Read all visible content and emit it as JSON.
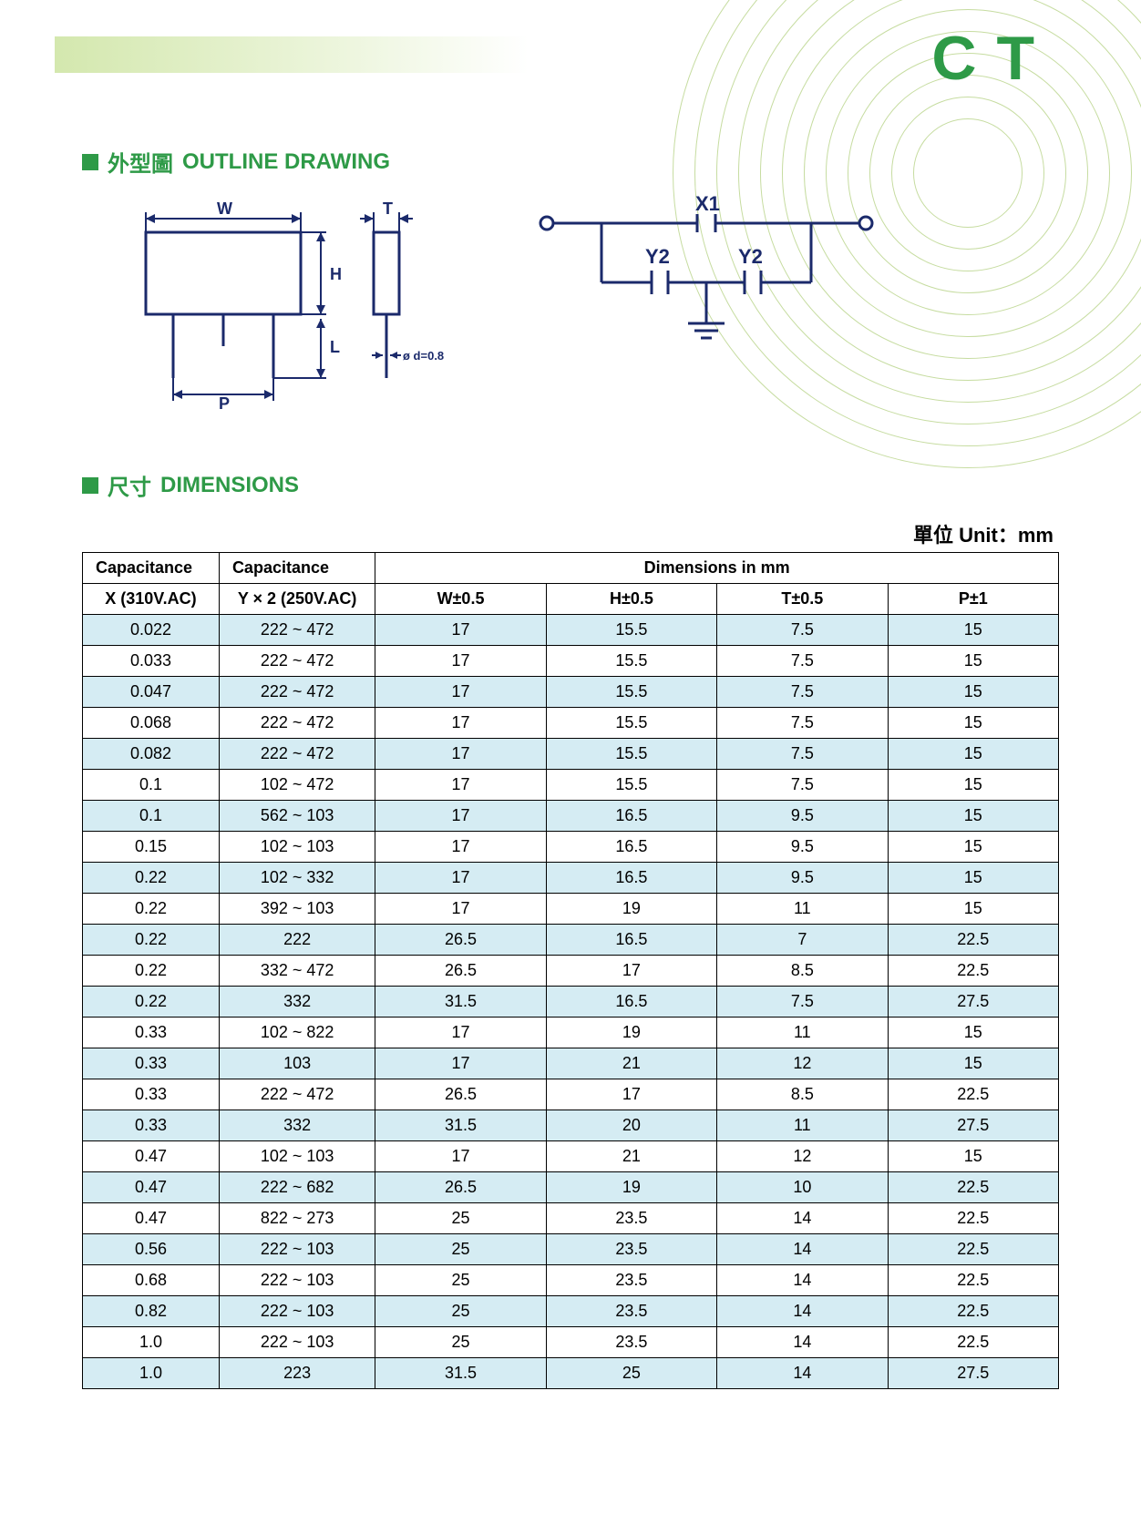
{
  "brand": "CT",
  "sections": {
    "outline": {
      "zh": "外型圖",
      "en": "OUTLINE DRAWING"
    },
    "dimensions": {
      "zh": "尺寸",
      "en": "DIMENSIONS"
    }
  },
  "unit_label": "單位 Unit：mm",
  "diagram1": {
    "W": "W",
    "H": "H",
    "L": "L",
    "P": "P",
    "T": "T",
    "d": "ø d=0.8"
  },
  "diagram2": {
    "X1": "X1",
    "Y2a": "Y2",
    "Y2b": "Y2"
  },
  "table": {
    "header1": [
      "Capacitance",
      "Capacitance",
      "Dimensions in mm"
    ],
    "header2": [
      "X (310V.AC)",
      "Y × 2 (250V.AC)",
      "W±0.5",
      "H±0.5",
      "T±0.5",
      "P±1"
    ],
    "col_widths_pct": [
      14,
      16,
      17.5,
      17.5,
      17.5,
      17.5
    ],
    "band_color": "#d5ecf3",
    "rows": [
      [
        "0.022",
        "222 ~ 472",
        "17",
        "15.5",
        "7.5",
        "15"
      ],
      [
        "0.033",
        "222 ~ 472",
        "17",
        "15.5",
        "7.5",
        "15"
      ],
      [
        "0.047",
        "222 ~ 472",
        "17",
        "15.5",
        "7.5",
        "15"
      ],
      [
        "0.068",
        "222 ~ 472",
        "17",
        "15.5",
        "7.5",
        "15"
      ],
      [
        "0.082",
        "222 ~ 472",
        "17",
        "15.5",
        "7.5",
        "15"
      ],
      [
        "0.1",
        "102 ~ 472",
        "17",
        "15.5",
        "7.5",
        "15"
      ],
      [
        "0.1",
        "562 ~ 103",
        "17",
        "16.5",
        "9.5",
        "15"
      ],
      [
        "0.15",
        "102 ~ 103",
        "17",
        "16.5",
        "9.5",
        "15"
      ],
      [
        "0.22",
        "102 ~ 332",
        "17",
        "16.5",
        "9.5",
        "15"
      ],
      [
        "0.22",
        "392 ~ 103",
        "17",
        "19",
        "11",
        "15"
      ],
      [
        "0.22",
        "222",
        "26.5",
        "16.5",
        "7",
        "22.5"
      ],
      [
        "0.22",
        "332 ~ 472",
        "26.5",
        "17",
        "8.5",
        "22.5"
      ],
      [
        "0.22",
        "332",
        "31.5",
        "16.5",
        "7.5",
        "27.5"
      ],
      [
        "0.33",
        "102 ~ 822",
        "17",
        "19",
        "11",
        "15"
      ],
      [
        "0.33",
        "103",
        "17",
        "21",
        "12",
        "15"
      ],
      [
        "0.33",
        "222 ~ 472",
        "26.5",
        "17",
        "8.5",
        "22.5"
      ],
      [
        "0.33",
        "332",
        "31.5",
        "20",
        "11",
        "27.5"
      ],
      [
        "0.47",
        "102 ~ 103",
        "17",
        "21",
        "12",
        "15"
      ],
      [
        "0.47",
        "222 ~ 682",
        "26.5",
        "19",
        "10",
        "22.5"
      ],
      [
        "0.47",
        "822 ~ 273",
        "25",
        "23.5",
        "14",
        "22.5"
      ],
      [
        "0.56",
        "222 ~ 103",
        "25",
        "23.5",
        "14",
        "22.5"
      ],
      [
        "0.68",
        "222 ~ 103",
        "25",
        "23.5",
        "14",
        "22.5"
      ],
      [
        "0.82",
        "222 ~ 103",
        "25",
        "23.5",
        "14",
        "22.5"
      ],
      [
        "1.0",
        "222 ~ 103",
        "25",
        "23.5",
        "14",
        "22.5"
      ],
      [
        "1.0",
        "223",
        "31.5",
        "25",
        "14",
        "27.5"
      ]
    ]
  },
  "colors": {
    "brand_green": "#2e9a47",
    "light_green": "#c9e29a",
    "ring": "#c6dca0",
    "band": "#d5ecf3",
    "navy": "#1b2a6b"
  }
}
